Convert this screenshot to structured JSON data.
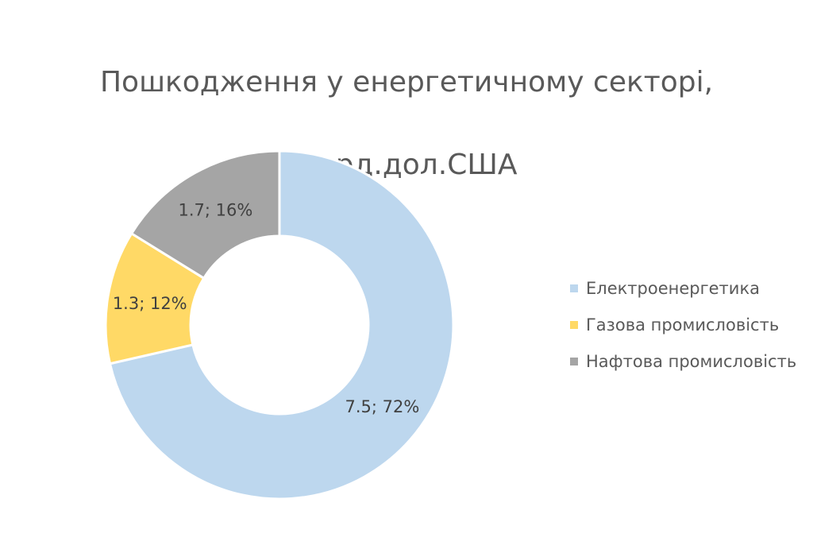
{
  "chart_data": {
    "type": "pie",
    "variant": "doughnut",
    "title": "Пошкодження у енергетичному секторі, млрд.дол.США",
    "title_lines": [
      "Пошкодження у енергетичному секторі,",
      "млрд.дол.США"
    ],
    "categories": [
      "Електроенергетика",
      "Газова промисловість",
      "Нафтова промисловість"
    ],
    "values": [
      7.5,
      1.3,
      1.7
    ],
    "percentages": [
      72,
      12,
      16
    ],
    "data_labels": [
      "7.5; 72%",
      "1.3; 12%",
      "1.7; 16%"
    ],
    "colors": [
      "#BDD7EE",
      "#FFD966",
      "#A5A5A5"
    ],
    "legend_position": "right",
    "start_angle_deg": 0,
    "direction": "clockwise"
  }
}
